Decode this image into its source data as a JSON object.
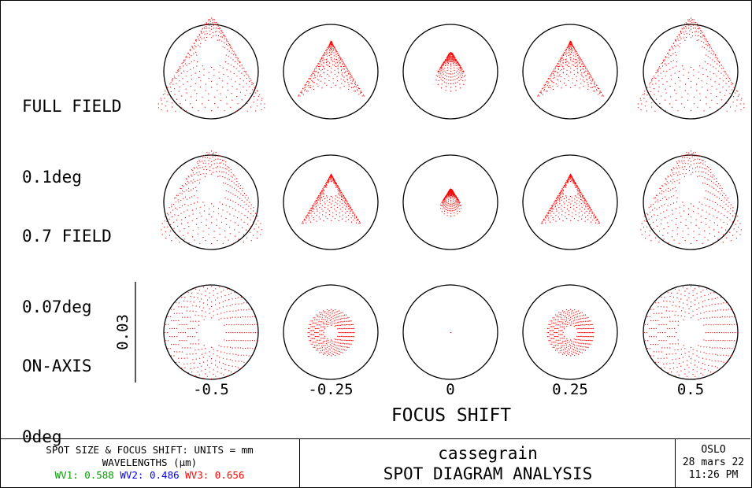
{
  "chart_data": {
    "type": "scatter",
    "title": "SPOT DIAGRAM ANALYSIS",
    "subtitle": "cassegrain",
    "xlabel": "FOCUS SHIFT",
    "x_ticks": [
      "-0.5",
      "-0.25",
      "0",
      "0.25",
      "0.5"
    ],
    "focus_shifts": [
      -0.5,
      -0.25,
      0,
      0.25,
      0.5
    ],
    "scale_bar_label": "0.03",
    "scale_bar_value": 0.03,
    "rows": [
      {
        "line1": "FULL FIELD",
        "line2": "0.1deg",
        "field_fraction": 1.0,
        "field_deg": 0.1
      },
      {
        "line1": "0.7 FIELD",
        "line2": "0.07deg",
        "field_fraction": 0.7,
        "field_deg": 0.07
      },
      {
        "line1": "ON-AXIS",
        "line2": "0deg",
        "field_fraction": 0.0,
        "field_deg": 0
      }
    ],
    "spot_color": "#ff0000",
    "circle_color": "#000000"
  },
  "footer": {
    "units_line": "SPOT SIZE & FOCUS SHIFT: UNITS = mm",
    "wavelengths_line": "WAVELENGTHS (μm)",
    "wavelengths": [
      {
        "label": "WV1: 0.588",
        "color": "#00a000"
      },
      {
        "label": "WV2: 0.486",
        "color": "#0000ff"
      },
      {
        "label": "WV3: 0.656",
        "color": "#ff0000"
      }
    ],
    "lens_name": "cassegrain",
    "analysis_title": "SPOT DIAGRAM ANALYSIS",
    "program": "OSLO",
    "date": "28 mars 22",
    "time": "11:26 PM"
  }
}
